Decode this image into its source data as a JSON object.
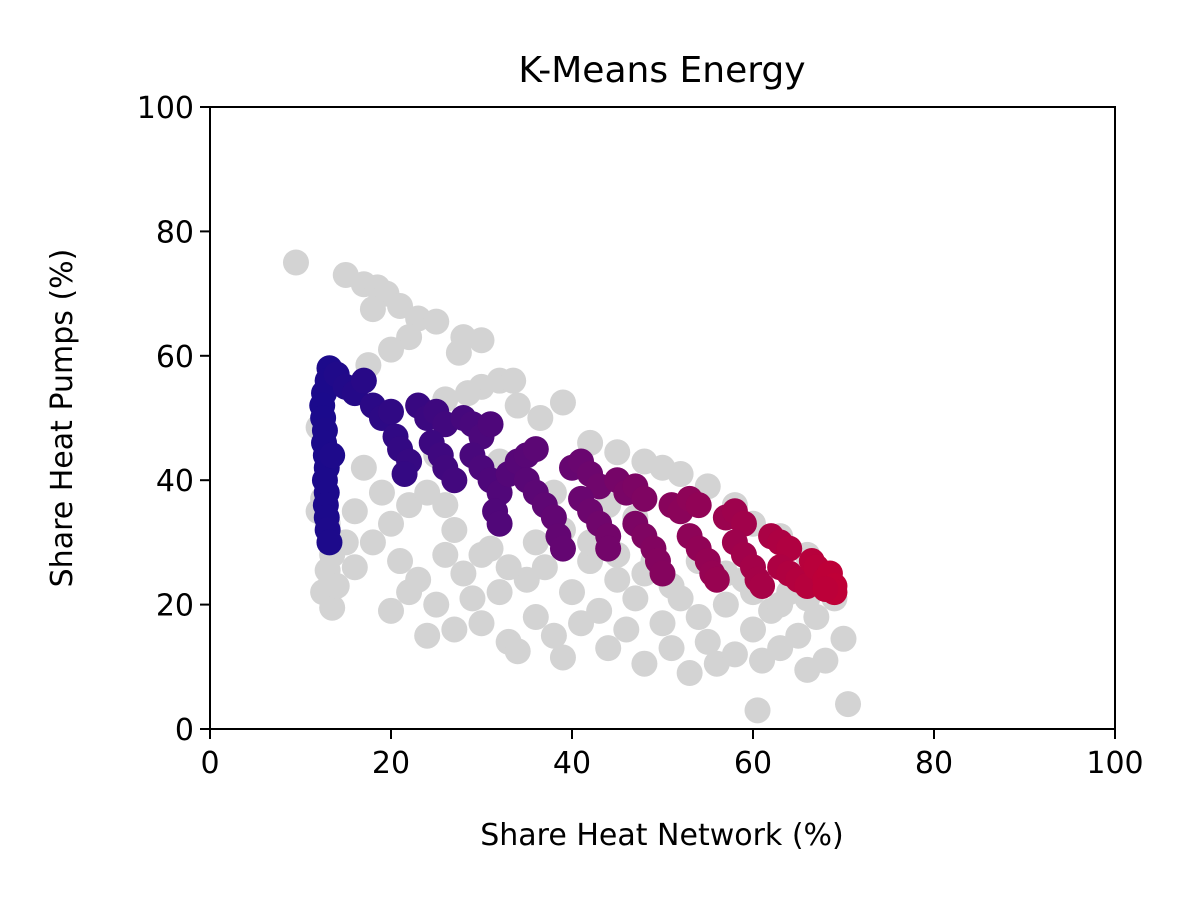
{
  "chart_data": {
    "type": "scatter",
    "title": "K-Means Energy",
    "xlabel": "Share Heat Network (%)",
    "ylabel": "Share Heat Pumps (%)",
    "xlim": [
      0,
      100
    ],
    "ylim": [
      0,
      100
    ],
    "xticks": [
      "0",
      "20",
      "40",
      "60",
      "80",
      "100"
    ],
    "yticks": [
      "0",
      "20",
      "40",
      "60",
      "80",
      "100"
    ],
    "grid": false,
    "colors": {
      "background_points": "#d3d3d3",
      "gradient_start": "#1a0a8c",
      "gradient_mid": "#6a0670",
      "gradient_end": "#c20035"
    },
    "series": [
      {
        "role": "background",
        "points": [
          [
            9.5,
            75
          ],
          [
            15,
            73
          ],
          [
            17,
            71.5
          ],
          [
            18.5,
            71
          ],
          [
            19.5,
            70
          ],
          [
            18,
            67.5
          ],
          [
            21,
            68
          ],
          [
            23,
            66
          ],
          [
            25,
            65.5
          ],
          [
            22,
            63
          ],
          [
            28,
            63
          ],
          [
            30,
            62.5
          ],
          [
            27.5,
            60.5
          ],
          [
            20,
            61
          ],
          [
            17.5,
            58.5
          ],
          [
            32,
            56
          ],
          [
            33.5,
            56
          ],
          [
            30,
            55
          ],
          [
            39,
            52.5
          ],
          [
            34,
            52
          ],
          [
            36.5,
            50
          ],
          [
            28.5,
            54
          ],
          [
            26,
            53
          ],
          [
            12,
            48.5
          ],
          [
            12.5,
            37
          ],
          [
            12,
            35
          ],
          [
            13,
            33
          ],
          [
            13.5,
            28
          ],
          [
            13,
            25.5
          ],
          [
            12.5,
            22
          ],
          [
            13.5,
            19.5
          ],
          [
            16,
            26
          ],
          [
            18,
            30
          ],
          [
            20,
            19
          ],
          [
            21,
            27
          ],
          [
            22,
            22
          ],
          [
            23,
            24
          ],
          [
            24,
            15
          ],
          [
            25,
            20
          ],
          [
            26,
            28
          ],
          [
            27,
            16
          ],
          [
            28,
            25
          ],
          [
            29,
            21
          ],
          [
            30,
            17
          ],
          [
            31,
            29
          ],
          [
            32,
            22
          ],
          [
            33,
            14
          ],
          [
            34,
            12.5
          ],
          [
            35,
            24
          ],
          [
            36,
            18
          ],
          [
            37,
            26
          ],
          [
            38,
            15
          ],
          [
            39,
            11.5
          ],
          [
            40,
            22
          ],
          [
            41,
            17
          ],
          [
            42,
            27
          ],
          [
            43,
            19
          ],
          [
            44,
            13
          ],
          [
            45,
            24
          ],
          [
            46,
            16
          ],
          [
            47,
            21
          ],
          [
            48,
            10.5
          ],
          [
            49,
            27
          ],
          [
            50,
            17
          ],
          [
            51,
            13
          ],
          [
            52,
            21
          ],
          [
            53,
            9
          ],
          [
            54,
            18
          ],
          [
            55,
            14
          ],
          [
            56,
            10.5
          ],
          [
            57,
            20
          ],
          [
            58,
            12
          ],
          [
            59,
            24
          ],
          [
            60,
            16
          ],
          [
            61,
            11
          ],
          [
            62,
            19
          ],
          [
            63,
            13
          ],
          [
            64,
            22
          ],
          [
            65,
            15
          ],
          [
            66,
            9.5
          ],
          [
            67,
            18
          ],
          [
            68,
            11
          ],
          [
            69,
            21
          ],
          [
            70,
            14.5
          ],
          [
            60.5,
            3
          ],
          [
            70.5,
            4
          ],
          [
            42,
            46
          ],
          [
            45,
            44.5
          ],
          [
            48,
            43
          ],
          [
            50,
            42
          ],
          [
            52,
            41
          ],
          [
            55,
            39
          ],
          [
            58,
            36
          ],
          [
            60,
            33
          ],
          [
            63,
            31
          ],
          [
            66,
            28
          ],
          [
            44,
            36
          ],
          [
            47,
            34
          ],
          [
            38,
            38
          ],
          [
            35,
            40
          ],
          [
            32,
            43
          ],
          [
            25,
            44
          ],
          [
            22,
            36
          ],
          [
            27,
            32
          ],
          [
            30,
            28
          ],
          [
            33,
            26
          ],
          [
            36,
            30
          ],
          [
            39,
            32
          ],
          [
            42,
            30
          ],
          [
            45,
            28
          ],
          [
            48,
            25
          ],
          [
            51,
            23
          ],
          [
            54,
            27
          ],
          [
            57,
            25
          ],
          [
            60,
            22
          ],
          [
            63,
            20
          ],
          [
            66,
            21
          ],
          [
            17,
            42
          ],
          [
            19,
            38
          ],
          [
            15,
            30
          ],
          [
            14,
            23
          ],
          [
            16,
            35
          ],
          [
            20,
            33
          ],
          [
            24,
            38
          ],
          [
            26,
            36
          ]
        ]
      },
      {
        "role": "cluster",
        "points": [
          [
            13.2,
            58
          ],
          [
            13.0,
            56
          ],
          [
            12.6,
            54
          ],
          [
            12.4,
            52
          ],
          [
            12.5,
            50
          ],
          [
            12.7,
            48
          ],
          [
            12.6,
            46
          ],
          [
            12.8,
            44
          ],
          [
            12.9,
            42
          ],
          [
            12.7,
            40
          ],
          [
            12.9,
            38
          ],
          [
            12.8,
            36
          ],
          [
            12.9,
            34
          ],
          [
            13.0,
            32
          ],
          [
            13.2,
            30
          ],
          [
            13.5,
            44
          ],
          [
            14,
            57
          ],
          [
            15,
            55
          ],
          [
            16,
            54
          ],
          [
            17,
            56
          ],
          [
            18,
            52
          ],
          [
            19,
            50
          ],
          [
            20,
            51
          ],
          [
            20.5,
            47
          ],
          [
            21,
            45
          ],
          [
            22,
            43
          ],
          [
            21.5,
            41
          ],
          [
            23,
            52
          ],
          [
            24,
            50
          ],
          [
            25,
            51
          ],
          [
            26,
            49
          ],
          [
            24.5,
            46
          ],
          [
            25.5,
            44
          ],
          [
            26,
            42
          ],
          [
            27,
            40
          ],
          [
            28,
            50
          ],
          [
            29,
            49
          ],
          [
            30,
            47
          ],
          [
            31,
            49
          ],
          [
            29,
            44
          ],
          [
            30,
            42
          ],
          [
            31,
            40
          ],
          [
            32,
            38
          ],
          [
            31.5,
            35
          ],
          [
            32,
            33
          ],
          [
            33,
            41
          ],
          [
            34,
            43
          ],
          [
            35,
            44
          ],
          [
            36,
            45
          ],
          [
            35,
            40
          ],
          [
            36,
            38
          ],
          [
            37,
            36
          ],
          [
            38,
            34
          ],
          [
            38.5,
            31
          ],
          [
            39,
            29
          ],
          [
            40,
            42
          ],
          [
            41,
            43
          ],
          [
            42,
            41
          ],
          [
            43,
            39
          ],
          [
            41,
            37
          ],
          [
            42,
            35
          ],
          [
            43,
            33
          ],
          [
            44,
            31
          ],
          [
            44,
            29
          ],
          [
            45,
            40
          ],
          [
            46,
            38
          ],
          [
            47,
            39
          ],
          [
            48,
            37
          ],
          [
            47,
            33
          ],
          [
            48,
            31
          ],
          [
            49,
            29
          ],
          [
            49.5,
            27
          ],
          [
            50,
            25
          ],
          [
            51,
            36
          ],
          [
            52,
            35
          ],
          [
            53,
            37
          ],
          [
            54,
            36
          ],
          [
            53,
            31
          ],
          [
            54,
            29
          ],
          [
            55,
            27
          ],
          [
            55.5,
            25
          ],
          [
            56,
            24
          ],
          [
            57,
            34
          ],
          [
            58,
            35
          ],
          [
            59,
            33
          ],
          [
            58,
            30
          ],
          [
            59,
            28
          ],
          [
            60,
            26
          ],
          [
            60.5,
            24
          ],
          [
            61,
            23
          ],
          [
            62,
            31
          ],
          [
            63,
            30
          ],
          [
            64,
            29
          ],
          [
            63,
            26
          ],
          [
            64,
            25
          ],
          [
            65,
            24
          ],
          [
            66,
            23
          ],
          [
            66.5,
            27
          ],
          [
            67,
            26
          ],
          [
            68,
            24
          ],
          [
            68.5,
            25
          ],
          [
            69,
            23
          ],
          [
            69,
            22
          ],
          [
            68,
            22.5
          ]
        ]
      }
    ]
  }
}
